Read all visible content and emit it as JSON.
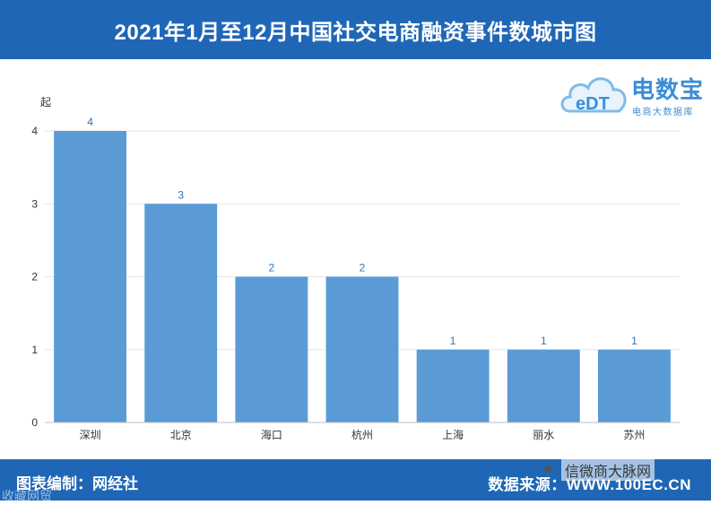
{
  "header": {
    "title": "2021年1月至12月中国社交电商融资事件数城市图"
  },
  "logo": {
    "name": "电数宝",
    "tagline": "电商大数据库",
    "badge_text": "eDT"
  },
  "footer": {
    "left": "图表编制：网经社",
    "right": "数据来源：WWW.100EC.CN",
    "watermark_left": "收藏网贸",
    "watermark_right": "信微商大脉网"
  },
  "colors": {
    "bar": "#5b9bd5",
    "title_bar": "#1f67b6",
    "label": "#2e75b6"
  },
  "chart_data": {
    "type": "bar",
    "title": "2021年1月至12月中国社交电商融资事件数城市图",
    "ylabel": "起",
    "xlabel": "",
    "categories": [
      "深圳",
      "北京",
      "海口",
      "杭州",
      "上海",
      "丽水",
      "苏州"
    ],
    "values": [
      4,
      3,
      2,
      2,
      1,
      1,
      1
    ],
    "ylim": [
      0,
      4
    ],
    "yticks": [
      0,
      1,
      2,
      3,
      4
    ],
    "grid": true,
    "data_labels": true
  }
}
